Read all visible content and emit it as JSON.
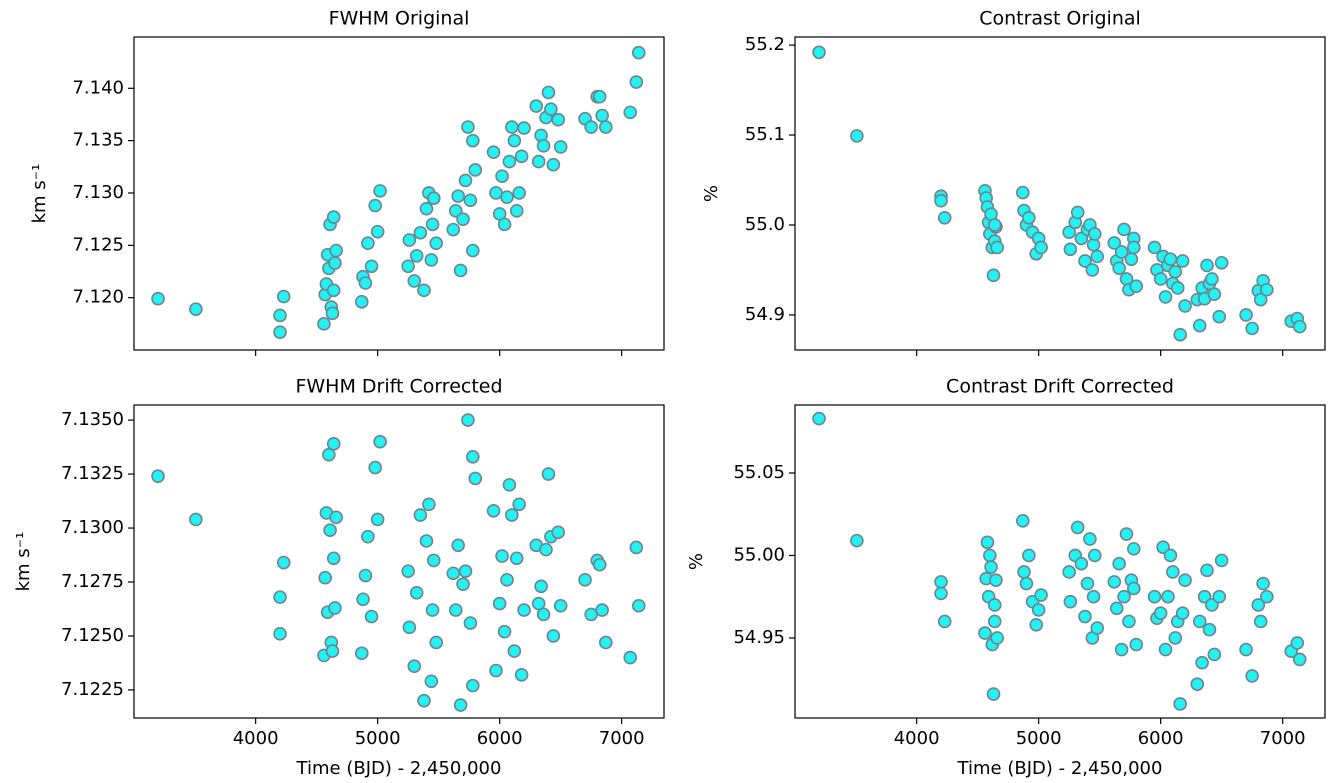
{
  "chart_data": [
    {
      "type": "scatter",
      "title": "FWHM Original",
      "y_label": "km s⁻¹",
      "color": "#22f2f2",
      "edgecolor": "#6f8290",
      "show_xticklabels": false,
      "x": [
        3200,
        3510,
        4200,
        4200,
        4230,
        4560,
        4570,
        4580,
        4590,
        4600,
        4610,
        4620,
        4630,
        4640,
        4650,
        4660,
        4640,
        4870,
        4880,
        4900,
        4920,
        4950,
        4980,
        5000,
        5020,
        5250,
        5260,
        5300,
        5320,
        5350,
        5380,
        5400,
        5420,
        5440,
        5450,
        5460,
        5480,
        5620,
        5640,
        5660,
        5680,
        5700,
        5720,
        5740,
        5760,
        5780,
        5800,
        5780,
        5950,
        5970,
        6000,
        6020,
        6040,
        6060,
        6080,
        6100,
        6120,
        6140,
        6160,
        6180,
        6200,
        6300,
        6320,
        6340,
        6360,
        6380,
        6400,
        6420,
        6440,
        6480,
        6500,
        6700,
        6750,
        6800,
        6820,
        6840,
        6870,
        7070,
        7120,
        7140
      ],
      "values": [
        7.1199,
        7.1189,
        7.1183,
        7.1167,
        7.1201,
        7.1175,
        7.1203,
        7.1213,
        7.1241,
        7.1228,
        7.127,
        7.1191,
        7.1185,
        7.1277,
        7.1233,
        7.1245,
        7.1207,
        7.1196,
        7.122,
        7.1214,
        7.1252,
        7.123,
        7.1288,
        7.1263,
        7.1302,
        7.123,
        7.1255,
        7.1216,
        7.124,
        7.1262,
        7.1207,
        7.1285,
        7.13,
        7.1236,
        7.127,
        7.1295,
        7.1252,
        7.1265,
        7.1283,
        7.1297,
        7.1226,
        7.1275,
        7.1312,
        7.1363,
        7.1293,
        7.135,
        7.1322,
        7.1245,
        7.1339,
        7.13,
        7.128,
        7.1316,
        7.127,
        7.1296,
        7.133,
        7.1363,
        7.135,
        7.1283,
        7.13,
        7.1335,
        7.1362,
        7.1383,
        7.133,
        7.1355,
        7.1345,
        7.1372,
        7.1396,
        7.138,
        7.1327,
        7.137,
        7.1344,
        7.1371,
        7.1363,
        7.1392,
        7.1392,
        7.1374,
        7.1363,
        7.1377,
        7.1406,
        7.1434
      ],
      "xlim": [
        3003,
        7347
      ],
      "ylim": [
        7.115,
        7.1449
      ],
      "xticks": [
        4000,
        5000,
        6000,
        7000
      ],
      "yticks": [
        {
          "value": 7.12,
          "label": "7.120"
        },
        7.125,
        {
          "value": 7.13,
          "label": "7.130"
        },
        7.135,
        {
          "value": 7.14,
          "label": "7.140"
        }
      ]
    },
    {
      "type": "scatter",
      "title": "Contrast Original",
      "y_label": "%",
      "color": "#22f2f2",
      "edgecolor": "#6f8290",
      "show_xticklabels": false,
      "x": [
        3200,
        3510,
        4200,
        4200,
        4230,
        4560,
        4570,
        4580,
        4590,
        4600,
        4610,
        4620,
        4630,
        4640,
        4650,
        4660,
        4640,
        4870,
        4880,
        4900,
        4920,
        4950,
        4980,
        5000,
        5020,
        5250,
        5260,
        5300,
        5320,
        5350,
        5380,
        5400,
        5420,
        5440,
        5450,
        5460,
        5480,
        5620,
        5640,
        5660,
        5680,
        5700,
        5720,
        5740,
        5760,
        5780,
        5800,
        5780,
        5950,
        5970,
        6000,
        6020,
        6040,
        6060,
        6080,
        6100,
        6120,
        6140,
        6160,
        6180,
        6200,
        6300,
        6320,
        6340,
        6360,
        6380,
        6400,
        6420,
        6440,
        6480,
        6500,
        6700,
        6750,
        6800,
        6820,
        6840,
        6870,
        7070,
        7120,
        7140
      ],
      "values": [
        55.192,
        55.099,
        55.032,
        55.027,
        55.008,
        55.038,
        55.03,
        55.02,
        55.003,
        54.99,
        55.012,
        54.975,
        54.944,
        54.982,
        54.998,
        54.975,
        55.0,
        55.036,
        55.016,
        55.0,
        55.008,
        54.992,
        54.968,
        54.985,
        54.975,
        54.992,
        54.973,
        55.003,
        55.014,
        54.985,
        54.96,
        54.995,
        55.0,
        54.95,
        54.978,
        54.99,
        54.965,
        54.98,
        54.96,
        54.952,
        54.97,
        54.995,
        54.94,
        54.928,
        54.962,
        54.985,
        54.932,
        54.975,
        54.975,
        54.95,
        54.94,
        54.965,
        54.92,
        54.955,
        54.962,
        54.935,
        54.948,
        54.93,
        54.878,
        54.96,
        54.91,
        54.917,
        54.888,
        54.93,
        54.918,
        54.955,
        54.935,
        54.94,
        54.923,
        54.898,
        54.958,
        54.9,
        54.885,
        54.927,
        54.917,
        54.938,
        54.928,
        54.893,
        54.896,
        54.887
      ],
      "xlim": [
        3003,
        7347
      ],
      "ylim": [
        54.861,
        55.209
      ],
      "xticks": [
        4000,
        5000,
        6000,
        7000
      ],
      "yticks": [
        54.9,
        {
          "value": 55.0,
          "label": "55.0"
        },
        55.1,
        55.2
      ]
    },
    {
      "type": "scatter",
      "title": "FWHM Drift Corrected",
      "x_label": "Time (BJD) - 2,450,000",
      "y_label": "km s⁻¹",
      "color": "#22f2f2",
      "edgecolor": "#6f8290",
      "show_xticklabels": true,
      "x": [
        3200,
        3510,
        4200,
        4200,
        4230,
        4560,
        4570,
        4580,
        4590,
        4600,
        4610,
        4620,
        4630,
        4640,
        4650,
        4660,
        4640,
        4870,
        4880,
        4900,
        4920,
        4950,
        4980,
        5000,
        5020,
        5250,
        5260,
        5300,
        5320,
        5350,
        5380,
        5400,
        5420,
        5440,
        5450,
        5460,
        5480,
        5620,
        5640,
        5660,
        5680,
        5700,
        5720,
        5740,
        5760,
        5780,
        5800,
        5780,
        5950,
        5970,
        6000,
        6020,
        6040,
        6060,
        6080,
        6100,
        6120,
        6140,
        6160,
        6180,
        6200,
        6300,
        6320,
        6340,
        6360,
        6380,
        6400,
        6420,
        6440,
        6480,
        6500,
        6700,
        6750,
        6800,
        6820,
        6840,
        6870,
        7070,
        7120,
        7140
      ],
      "values": [
        7.1324,
        7.1304,
        7.1268,
        7.1251,
        7.1284,
        7.1241,
        7.1277,
        7.1307,
        7.1261,
        7.1334,
        7.1299,
        7.1247,
        7.1243,
        7.1339,
        7.1263,
        7.1305,
        7.1286,
        7.1242,
        7.1267,
        7.1278,
        7.1296,
        7.1259,
        7.1328,
        7.1304,
        7.134,
        7.128,
        7.1254,
        7.1236,
        7.127,
        7.1306,
        7.122,
        7.1294,
        7.1311,
        7.1229,
        7.1262,
        7.1285,
        7.1247,
        7.1279,
        7.1262,
        7.1292,
        7.1218,
        7.1274,
        7.128,
        7.135,
        7.1256,
        7.1333,
        7.1323,
        7.1227,
        7.1308,
        7.1234,
        7.1265,
        7.1287,
        7.1252,
        7.1276,
        7.132,
        7.1306,
        7.1243,
        7.1286,
        7.1311,
        7.1232,
        7.1262,
        7.1292,
        7.1265,
        7.1273,
        7.126,
        7.129,
        7.1325,
        7.1296,
        7.125,
        7.1298,
        7.1264,
        7.1276,
        7.126,
        7.1285,
        7.1283,
        7.1262,
        7.1247,
        7.124,
        7.1291,
        7.1264
      ],
      "xlim": [
        3003,
        7347
      ],
      "ylim": [
        7.1212,
        7.1357
      ],
      "xticks": [
        4000,
        5000,
        6000,
        7000
      ],
      "yticks": [
        7.1225,
        {
          "value": 7.125,
          "label": "7.1250"
        },
        7.1275,
        {
          "value": 7.13,
          "label": "7.1300"
        },
        7.1325,
        {
          "value": 7.135,
          "label": "7.1350"
        }
      ]
    },
    {
      "type": "scatter",
      "title": "Contrast Drift Corrected",
      "x_label": "Time (BJD) - 2,450,000",
      "y_label": "%",
      "color": "#22f2f2",
      "edgecolor": "#6f8290",
      "show_xticklabels": true,
      "x": [
        3200,
        3510,
        4200,
        4200,
        4230,
        4560,
        4570,
        4580,
        4590,
        4600,
        4610,
        4620,
        4630,
        4640,
        4650,
        4660,
        4640,
        4870,
        4880,
        4900,
        4920,
        4950,
        4980,
        5000,
        5020,
        5250,
        5260,
        5300,
        5320,
        5350,
        5380,
        5400,
        5420,
        5440,
        5450,
        5460,
        5480,
        5620,
        5640,
        5660,
        5680,
        5700,
        5720,
        5740,
        5760,
        5780,
        5800,
        5780,
        5950,
        5970,
        6000,
        6020,
        6040,
        6060,
        6080,
        6100,
        6120,
        6140,
        6160,
        6180,
        6200,
        6300,
        6320,
        6340,
        6360,
        6380,
        6400,
        6420,
        6440,
        6480,
        6500,
        6700,
        6750,
        6800,
        6820,
        6840,
        6870,
        7070,
        7120,
        7140
      ],
      "values": [
        55.083,
        55.009,
        54.984,
        54.977,
        54.96,
        54.953,
        54.986,
        55.008,
        54.975,
        55.0,
        54.993,
        54.946,
        54.916,
        54.96,
        54.985,
        54.95,
        54.97,
        55.021,
        54.99,
        54.983,
        55.0,
        54.972,
        54.958,
        54.967,
        54.976,
        54.99,
        54.972,
        55.0,
        55.017,
        54.995,
        54.963,
        54.983,
        55.01,
        54.95,
        54.975,
        55.0,
        54.956,
        54.984,
        54.968,
        54.995,
        54.943,
        54.975,
        55.013,
        54.96,
        54.985,
        55.004,
        54.946,
        54.98,
        54.975,
        54.962,
        54.965,
        55.005,
        54.943,
        54.975,
        55.0,
        54.99,
        54.95,
        54.96,
        54.91,
        54.965,
        54.985,
        54.922,
        54.96,
        54.935,
        54.975,
        54.991,
        54.955,
        54.97,
        54.94,
        54.975,
        54.997,
        54.943,
        54.927,
        54.97,
        54.96,
        54.983,
        54.975,
        54.942,
        54.947,
        54.937
      ],
      "xlim": [
        3003,
        7347
      ],
      "ylim": [
        54.9015,
        55.0912
      ],
      "xticks": [
        4000,
        5000,
        6000,
        7000
      ],
      "yticks": [
        54.95,
        {
          "value": 55.0,
          "label": "55.00"
        },
        55.05
      ]
    }
  ]
}
